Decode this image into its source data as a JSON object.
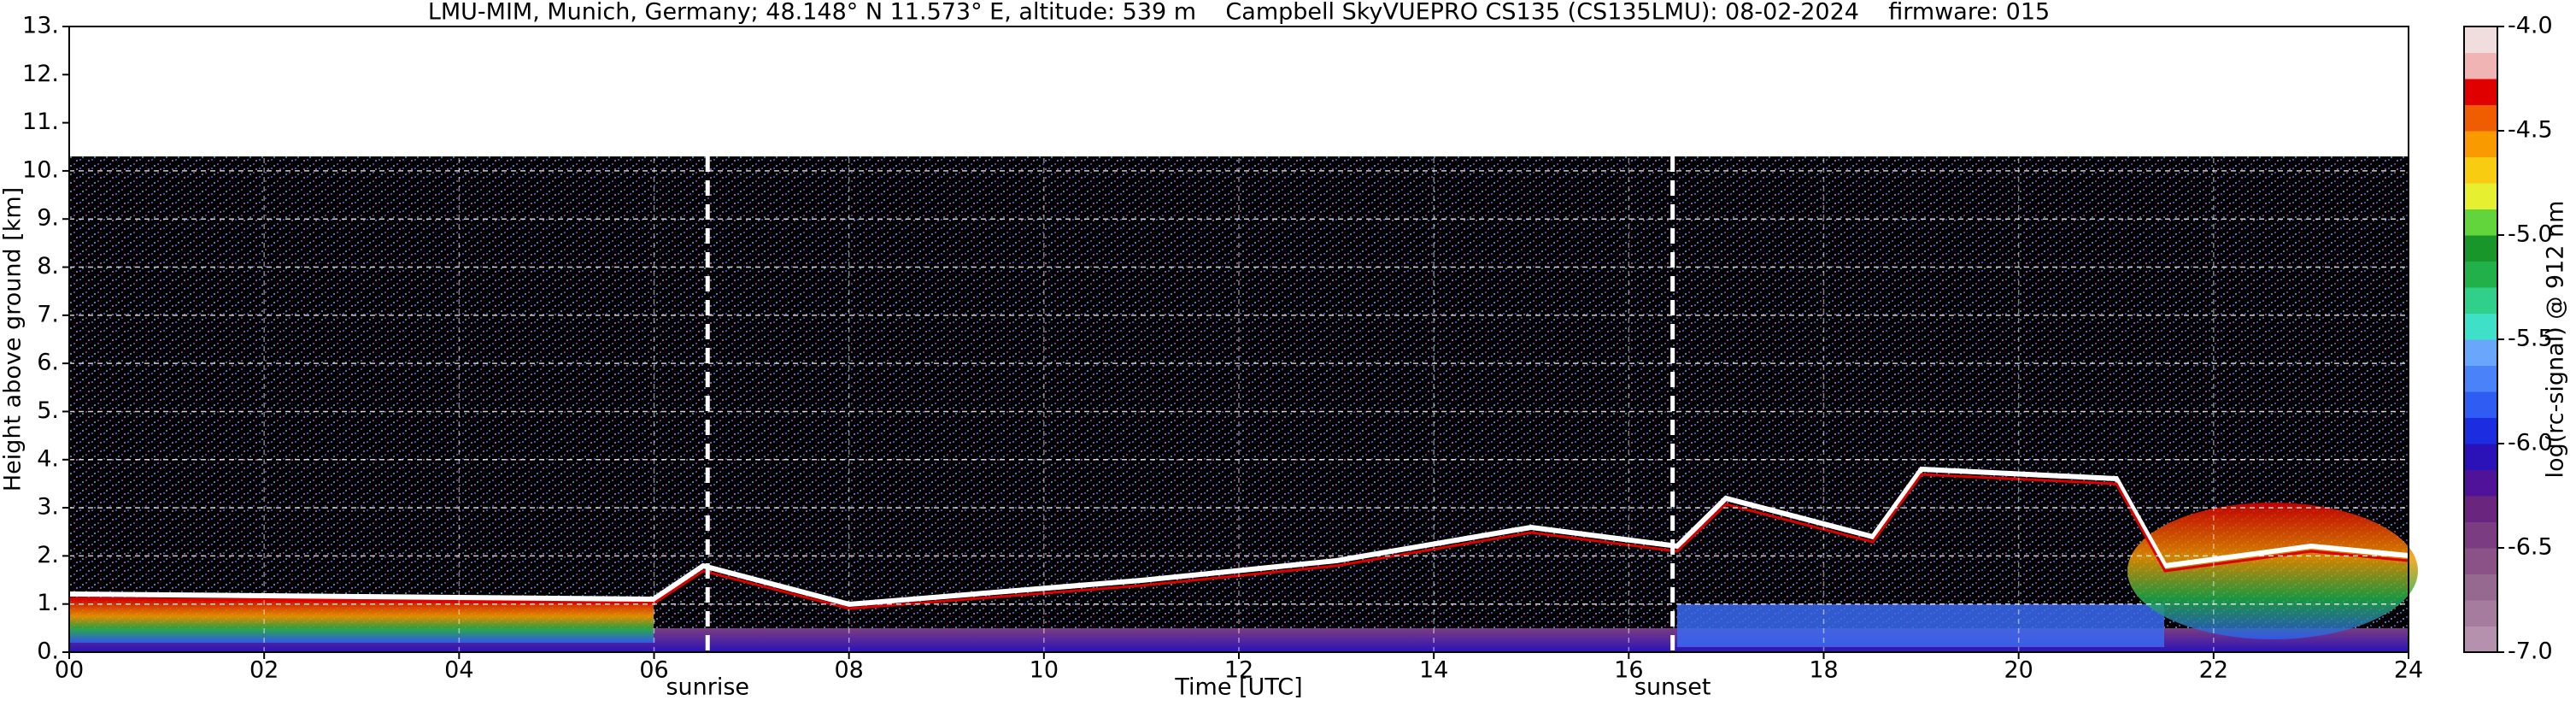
{
  "chart_data": {
    "type": "heatmap",
    "title": "LMU-MIM, Munich, Germany; 48.148° N 11.573° E, altitude: 539 m    Campbell SkyVUEPRO CS135 (CS135LMU): 08-02-2024    firmware: 015",
    "x_label": "Time [UTC]",
    "y_label": "Height above ground [km]",
    "colorbar_label": "log(rc-signal) @ 912 nm",
    "xlim": [
      0,
      24
    ],
    "xticks": [
      {
        "value": 0,
        "label": "00"
      },
      {
        "value": 2,
        "label": "02"
      },
      {
        "value": 4,
        "label": "04"
      },
      {
        "value": 6,
        "label": "06"
      },
      {
        "value": 8,
        "label": "08"
      },
      {
        "value": 10,
        "label": "10"
      },
      {
        "value": 12,
        "label": "12"
      },
      {
        "value": 14,
        "label": "14"
      },
      {
        "value": 16,
        "label": "16"
      },
      {
        "value": 18,
        "label": "18"
      },
      {
        "value": 20,
        "label": "20"
      },
      {
        "value": 22,
        "label": "22"
      },
      {
        "value": 24,
        "label": "24"
      }
    ],
    "ylim": [
      0,
      13
    ],
    "yticks": [
      {
        "value": 0,
        "label": "0."
      },
      {
        "value": 1,
        "label": "1."
      },
      {
        "value": 2,
        "label": "2."
      },
      {
        "value": 3,
        "label": "3."
      },
      {
        "value": 4,
        "label": "4."
      },
      {
        "value": 5,
        "label": "5."
      },
      {
        "value": 6,
        "label": "6."
      },
      {
        "value": 7,
        "label": "7."
      },
      {
        "value": 8,
        "label": "8."
      },
      {
        "value": 9,
        "label": "9."
      },
      {
        "value": 10,
        "label": "10."
      },
      {
        "value": 11,
        "label": "11."
      },
      {
        "value": 12,
        "label": "12."
      },
      {
        "value": 13,
        "label": "13."
      }
    ],
    "grid": true,
    "profile_top": 10.3,
    "clim": [
      -7,
      -4
    ],
    "cticks": [
      {
        "value": -7,
        "label": "-7.0"
      },
      {
        "value": -6.5,
        "label": "-6.5"
      },
      {
        "value": -6,
        "label": "-6.0"
      },
      {
        "value": -5.5,
        "label": "-5.5"
      },
      {
        "value": -5,
        "label": "-5.0"
      },
      {
        "value": -4.5,
        "label": "-4.5"
      },
      {
        "value": -4,
        "label": "-4.0"
      }
    ],
    "colors": [
      "#b591ad",
      "#a57b9e",
      "#966a90",
      "#8a5287",
      "#7c3c82",
      "#6a267e",
      "#501298",
      "#2a12b8",
      "#1c2ce0",
      "#2f5cf2",
      "#4a82fa",
      "#6aa6fc",
      "#3ee0c8",
      "#30d08a",
      "#22b04a",
      "#18962a",
      "#62d43c",
      "#e6f030",
      "#f8cc10",
      "#f89a00",
      "#f05c00",
      "#e00000",
      "#f0b4b4",
      "#f0dede"
    ],
    "annotations": [
      {
        "text": "sunrise",
        "x": 6.55
      },
      {
        "text": "sunset",
        "x": 16.45
      }
    ]
  }
}
